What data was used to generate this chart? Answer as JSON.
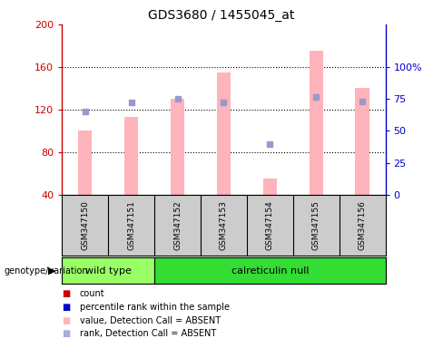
{
  "title": "GDS3680 / 1455045_at",
  "samples": [
    "GSM347150",
    "GSM347151",
    "GSM347152",
    "GSM347153",
    "GSM347154",
    "GSM347155",
    "GSM347156"
  ],
  "pink_bar_values": [
    100,
    113,
    130,
    155,
    55,
    175,
    140
  ],
  "blue_square_values": [
    118,
    127,
    130,
    127,
    88,
    132,
    128
  ],
  "pink_bar_color": "#FFB3BA",
  "blue_square_color": "#9999CC",
  "ymin": 40,
  "ymax": 200,
  "yticks_left": [
    40,
    80,
    120,
    160,
    200
  ],
  "ytick_labels_left": [
    "40",
    "80",
    "120",
    "160",
    "200"
  ],
  "ytick_labels_right": [
    "0",
    "25",
    "50",
    "75",
    "100%"
  ],
  "yticks_right_vals": [
    40,
    70,
    100,
    130,
    160
  ],
  "left_axis_color": "#CC0000",
  "right_axis_color": "#0000CC",
  "wild_type_label": "wild type",
  "calreticulin_null_label": "calreticulin null",
  "genotype_label": "genotype/variation",
  "legend_items": [
    {
      "label": "count",
      "color": "#CC0000"
    },
    {
      "label": "percentile rank within the sample",
      "color": "#0000CC"
    },
    {
      "label": "value, Detection Call = ABSENT",
      "color": "#FFB3BA"
    },
    {
      "label": "rank, Detection Call = ABSENT",
      "color": "#AAAADD"
    }
  ],
  "plot_bg_color": "#FFFFFF",
  "fig_bg_color": "#FFFFFF",
  "bar_width": 0.3,
  "sample_box_color": "#CCCCCC",
  "wild_type_bg": "#99FF66",
  "calreticulin_bg": "#33DD33"
}
